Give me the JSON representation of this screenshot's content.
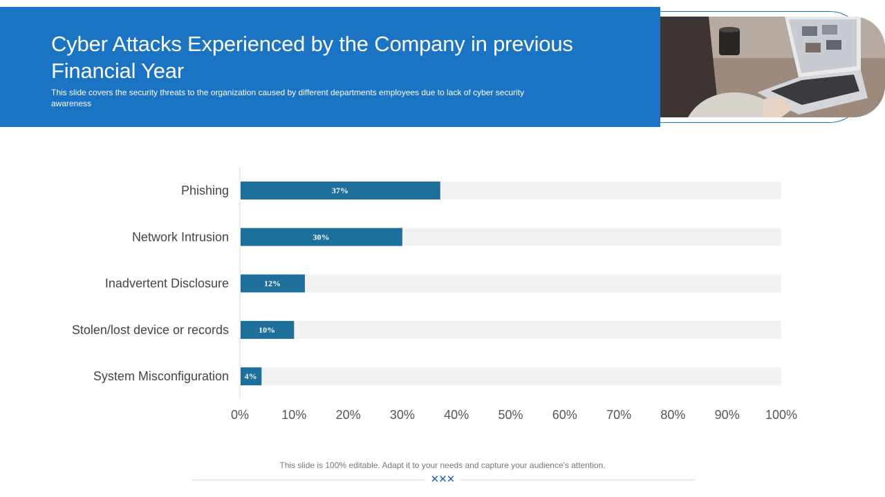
{
  "header": {
    "title": "Cyber Attacks Experienced by the Company in previous Financial Year",
    "subtitle": "This slide covers the security threats to the organization caused by different departments employees due to lack of cyber security awareness"
  },
  "footer": {
    "note": "This slide is 100% editable. Adapt it to your needs and capture your audience's attention.",
    "mark": "✕✕✕"
  },
  "colors": {
    "header": "#1a73c3",
    "bar": "#1f6f9c",
    "track": "#f2f2f2",
    "axis_text": "#555555",
    "category_text": "#444444"
  },
  "chart_data": {
    "type": "bar",
    "orientation": "horizontal",
    "categories": [
      "Phishing",
      "Network Intrusion",
      "Inadvertent Disclosure",
      "Stolen/lost device or records",
      "System Misconfiguration"
    ],
    "values": [
      37,
      30,
      12,
      10,
      4
    ],
    "data_labels": [
      "37%",
      "30%",
      "12%",
      "10%",
      "4%"
    ],
    "xlim": [
      0,
      100
    ],
    "x_ticks": [
      0,
      10,
      20,
      30,
      40,
      50,
      60,
      70,
      80,
      90,
      100
    ],
    "x_tick_labels": [
      "0%",
      "10%",
      "20%",
      "30%",
      "40%",
      "50%",
      "60%",
      "70%",
      "80%",
      "90%",
      "100%"
    ],
    "xlabel": "",
    "ylabel": "",
    "grid": false,
    "legend": "none"
  }
}
